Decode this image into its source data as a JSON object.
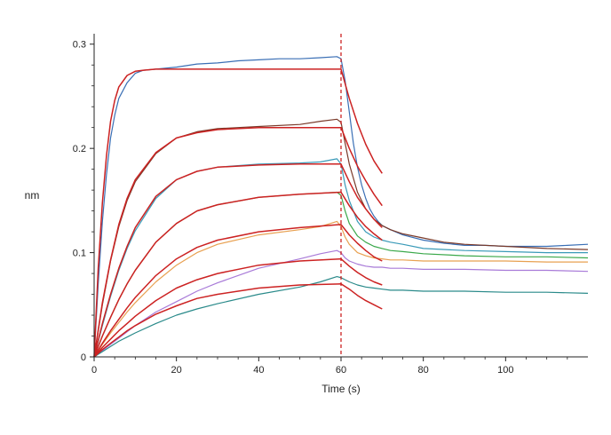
{
  "chart_data": {
    "type": "line",
    "title": "",
    "xlabel": "Time (s)",
    "ylabel": "nm",
    "xlim": [
      0,
      120
    ],
    "ylim": [
      0,
      0.31
    ],
    "xticks": [
      0,
      20,
      40,
      60,
      80,
      100
    ],
    "xtick_labels": [
      "0",
      "20",
      "40",
      "60",
      "80",
      "100"
    ],
    "yticks": [
      0,
      0.1,
      0.2,
      0.3
    ],
    "ytick_labels": [
      "0",
      "0.1",
      "0.2",
      "0.3"
    ],
    "grid": false,
    "legend": "none",
    "annotations": [
      {
        "type": "vertical-dashed-line",
        "x": 60,
        "color": "#cc2222"
      }
    ],
    "series": [
      {
        "kind": "measured",
        "color": "#3a6fb5",
        "x": [
          0,
          1,
          2,
          3,
          4,
          5,
          6,
          8,
          10,
          12,
          15,
          20,
          25,
          30,
          35,
          40,
          45,
          50,
          55,
          59,
          60,
          61,
          62,
          63,
          64,
          65,
          66,
          67,
          68,
          69,
          70,
          72,
          75,
          80,
          85,
          90,
          95,
          100,
          105,
          110,
          115,
          120
        ],
        "y": [
          0.0,
          0.07,
          0.13,
          0.175,
          0.21,
          0.232,
          0.248,
          0.263,
          0.272,
          0.275,
          0.276,
          0.278,
          0.281,
          0.282,
          0.284,
          0.285,
          0.286,
          0.286,
          0.287,
          0.288,
          0.286,
          0.265,
          0.235,
          0.205,
          0.182,
          0.165,
          0.152,
          0.142,
          0.135,
          0.13,
          0.126,
          0.122,
          0.117,
          0.112,
          0.109,
          0.107,
          0.107,
          0.106,
          0.106,
          0.106,
          0.107,
          0.108
        ]
      },
      {
        "kind": "measured",
        "color": "#7a3a2a",
        "x": [
          0,
          2,
          4,
          6,
          8,
          10,
          15,
          20,
          25,
          30,
          40,
          50,
          55,
          59,
          60,
          61,
          62,
          64,
          66,
          68,
          70,
          72,
          75,
          80,
          85,
          90,
          100,
          110,
          120
        ],
        "y": [
          0.0,
          0.05,
          0.092,
          0.125,
          0.15,
          0.168,
          0.195,
          0.21,
          0.216,
          0.219,
          0.221,
          0.223,
          0.226,
          0.228,
          0.225,
          0.205,
          0.185,
          0.158,
          0.142,
          0.132,
          0.126,
          0.122,
          0.118,
          0.114,
          0.11,
          0.108,
          0.106,
          0.104,
          0.103
        ]
      },
      {
        "kind": "measured",
        "color": "#3a9ab8",
        "x": [
          0,
          2,
          4,
          6,
          8,
          10,
          15,
          20,
          25,
          30,
          40,
          50,
          55,
          59,
          60,
          61,
          62,
          64,
          66,
          68,
          70,
          72,
          75,
          80,
          90,
          100,
          110,
          120
        ],
        "y": [
          0.0,
          0.03,
          0.058,
          0.083,
          0.104,
          0.121,
          0.152,
          0.17,
          0.178,
          0.182,
          0.185,
          0.186,
          0.187,
          0.19,
          0.185,
          0.165,
          0.15,
          0.13,
          0.12,
          0.115,
          0.112,
          0.11,
          0.108,
          0.104,
          0.102,
          0.101,
          0.1,
          0.1
        ]
      },
      {
        "kind": "measured",
        "color": "#3aa84a",
        "x": [
          0,
          2,
          4,
          6,
          8,
          10,
          15,
          20,
          25,
          30,
          40,
          50,
          55,
          59,
          60,
          61,
          62,
          64,
          66,
          68,
          70,
          72,
          75,
          80,
          90,
          100,
          110,
          120
        ],
        "y": [
          0.0,
          0.02,
          0.038,
          0.055,
          0.07,
          0.083,
          0.11,
          0.128,
          0.14,
          0.146,
          0.153,
          0.156,
          0.157,
          0.158,
          0.155,
          0.14,
          0.128,
          0.116,
          0.11,
          0.106,
          0.104,
          0.102,
          0.101,
          0.099,
          0.097,
          0.096,
          0.096,
          0.095
        ]
      },
      {
        "kind": "measured",
        "color": "#e8a050",
        "x": [
          0,
          2,
          4,
          6,
          8,
          10,
          15,
          20,
          25,
          30,
          40,
          50,
          55,
          59,
          60,
          61,
          62,
          64,
          66,
          68,
          70,
          72,
          75,
          80,
          90,
          100,
          110,
          120
        ],
        "y": [
          0.0,
          0.012,
          0.023,
          0.033,
          0.043,
          0.052,
          0.072,
          0.088,
          0.1,
          0.108,
          0.117,
          0.122,
          0.125,
          0.13,
          0.125,
          0.115,
          0.108,
          0.1,
          0.097,
          0.095,
          0.094,
          0.093,
          0.093,
          0.092,
          0.092,
          0.092,
          0.091,
          0.091
        ]
      },
      {
        "kind": "measured",
        "color": "#a87ad8",
        "x": [
          0,
          2,
          4,
          6,
          8,
          10,
          15,
          20,
          25,
          30,
          40,
          50,
          55,
          59,
          60,
          61,
          62,
          64,
          66,
          68,
          70,
          72,
          75,
          80,
          90,
          100,
          110,
          120
        ],
        "y": [
          0.0,
          0.006,
          0.012,
          0.018,
          0.024,
          0.03,
          0.043,
          0.053,
          0.063,
          0.071,
          0.085,
          0.094,
          0.099,
          0.102,
          0.1,
          0.095,
          0.092,
          0.089,
          0.087,
          0.086,
          0.086,
          0.085,
          0.085,
          0.084,
          0.084,
          0.083,
          0.083,
          0.082
        ]
      },
      {
        "kind": "measured",
        "color": "#2a8a8a",
        "x": [
          0,
          2,
          4,
          6,
          8,
          10,
          15,
          20,
          25,
          30,
          40,
          50,
          55,
          59,
          60,
          61,
          62,
          64,
          66,
          68,
          70,
          72,
          75,
          80,
          90,
          100,
          110,
          120
        ],
        "y": [
          0.0,
          0.005,
          0.01,
          0.015,
          0.019,
          0.023,
          0.032,
          0.04,
          0.046,
          0.051,
          0.06,
          0.067,
          0.072,
          0.077,
          0.076,
          0.074,
          0.072,
          0.069,
          0.067,
          0.066,
          0.065,
          0.064,
          0.064,
          0.063,
          0.063,
          0.062,
          0.062,
          0.061
        ]
      },
      {
        "kind": "fit",
        "color": "#cc2222",
        "x": [
          0,
          1,
          2,
          3,
          4,
          5,
          6,
          8,
          10,
          12,
          15,
          20,
          30,
          40,
          50,
          60,
          62,
          64,
          66,
          68,
          70
        ],
        "y": [
          0.0,
          0.085,
          0.148,
          0.193,
          0.226,
          0.246,
          0.259,
          0.27,
          0.274,
          0.275,
          0.276,
          0.276,
          0.276,
          0.276,
          0.276,
          0.276,
          0.248,
          0.224,
          0.204,
          0.188,
          0.176
        ]
      },
      {
        "kind": "fit",
        "color": "#cc2222",
        "x": [
          0,
          2,
          4,
          6,
          8,
          10,
          15,
          20,
          25,
          30,
          40,
          50,
          60,
          62,
          64,
          66,
          68,
          70
        ],
        "y": [
          0.0,
          0.052,
          0.093,
          0.127,
          0.152,
          0.17,
          0.196,
          0.21,
          0.215,
          0.218,
          0.22,
          0.22,
          0.22,
          0.2,
          0.183,
          0.169,
          0.156,
          0.145
        ]
      },
      {
        "kind": "fit",
        "color": "#cc2222",
        "x": [
          0,
          2,
          4,
          6,
          8,
          10,
          15,
          20,
          25,
          30,
          40,
          50,
          60,
          62,
          64,
          66,
          68,
          70
        ],
        "y": [
          0.0,
          0.032,
          0.06,
          0.085,
          0.106,
          0.124,
          0.154,
          0.17,
          0.178,
          0.182,
          0.184,
          0.185,
          0.185,
          0.168,
          0.153,
          0.142,
          0.132,
          0.124
        ]
      },
      {
        "kind": "fit",
        "color": "#cc2222",
        "x": [
          0,
          2,
          4,
          6,
          8,
          10,
          15,
          20,
          25,
          30,
          40,
          50,
          60,
          62,
          64,
          66,
          68,
          70
        ],
        "y": [
          0.0,
          0.02,
          0.038,
          0.055,
          0.07,
          0.083,
          0.11,
          0.128,
          0.14,
          0.146,
          0.153,
          0.156,
          0.158,
          0.145,
          0.134,
          0.125,
          0.118,
          0.112
        ]
      },
      {
        "kind": "fit",
        "color": "#cc2222",
        "x": [
          0,
          2,
          4,
          6,
          8,
          10,
          15,
          20,
          25,
          30,
          40,
          50,
          60,
          62,
          64,
          66,
          68,
          70
        ],
        "y": [
          0.0,
          0.013,
          0.025,
          0.036,
          0.047,
          0.057,
          0.078,
          0.094,
          0.105,
          0.112,
          0.12,
          0.124,
          0.127,
          0.117,
          0.109,
          0.102,
          0.096,
          0.092
        ]
      },
      {
        "kind": "fit",
        "color": "#cc2222",
        "x": [
          0,
          2,
          4,
          6,
          8,
          10,
          15,
          20,
          25,
          30,
          40,
          50,
          60,
          62,
          64,
          66,
          68,
          70
        ],
        "y": [
          0.0,
          0.009,
          0.017,
          0.025,
          0.032,
          0.039,
          0.054,
          0.066,
          0.074,
          0.08,
          0.088,
          0.092,
          0.094,
          0.087,
          0.081,
          0.076,
          0.072,
          0.069
        ]
      },
      {
        "kind": "fit",
        "color": "#cc2222",
        "x": [
          0,
          2,
          4,
          6,
          8,
          10,
          15,
          20,
          25,
          30,
          40,
          50,
          60,
          62,
          64,
          66,
          68,
          70
        ],
        "y": [
          0.0,
          0.007,
          0.013,
          0.019,
          0.025,
          0.03,
          0.041,
          0.049,
          0.056,
          0.06,
          0.066,
          0.069,
          0.07,
          0.065,
          0.059,
          0.054,
          0.05,
          0.046
        ]
      }
    ]
  }
}
